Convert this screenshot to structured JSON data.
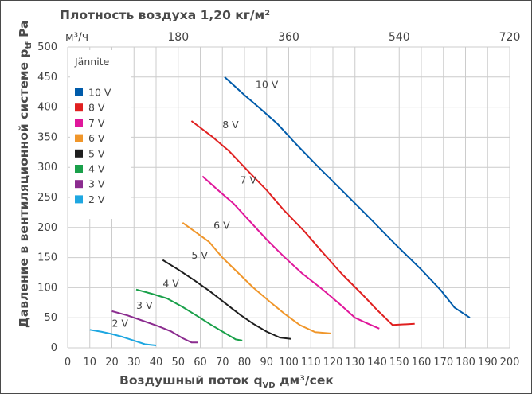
{
  "chart_data": {
    "type": "line",
    "title": "Плотность воздуха 1,20 кг/м²",
    "xlabel": "Воздушный поток q",
    "xlabel_sub": "VD",
    "xlabel_unit": " дм³/сек",
    "ylabel": "Давление в вентиляционной системе p",
    "ylabel_sub": "tf",
    "ylabel_unit": " Pa",
    "top_axis_unit": "м³/ч",
    "top_axis_ticks": [
      "180",
      "360",
      "540",
      "720"
    ],
    "top_axis_tick_values": [
      50,
      100,
      150,
      200
    ],
    "xlim": [
      0,
      200
    ],
    "ylim": [
      0,
      500
    ],
    "x_ticks": [
      0,
      10,
      20,
      30,
      40,
      50,
      60,
      70,
      80,
      90,
      100,
      110,
      120,
      130,
      140,
      150,
      160,
      170,
      180,
      190,
      200
    ],
    "y_ticks": [
      0,
      50,
      100,
      150,
      200,
      250,
      300,
      350,
      400,
      450,
      500
    ],
    "grid": true,
    "legend_title": "Jännite",
    "legend_position": "top-left",
    "series": [
      {
        "name": "10 V",
        "color": "#005BAA",
        "x": [
          71,
          80,
          87,
          95,
          103,
          113,
          124,
          136,
          148,
          160,
          169,
          175,
          182
        ],
        "y": [
          450,
          420,
          398,
          372,
          340,
          302,
          262,
          218,
          173,
          130,
          95,
          67,
          50
        ]
      },
      {
        "name": "8 V",
        "color": "#E02020",
        "x": [
          56,
          65,
          73,
          81,
          90,
          98,
          107,
          115,
          124,
          133,
          140,
          147,
          157
        ],
        "y": [
          377,
          352,
          327,
          296,
          262,
          228,
          194,
          160,
          123,
          90,
          63,
          38,
          40
        ]
      },
      {
        "name": "7 V",
        "color": "#E0179B",
        "x": [
          61,
          68,
          75,
          82,
          90,
          98,
          106,
          115,
          123,
          130,
          136,
          141
        ],
        "y": [
          285,
          262,
          240,
          212,
          180,
          151,
          124,
          98,
          73,
          50,
          40,
          32
        ]
      },
      {
        "name": "6 V",
        "color": "#F0962A",
        "x": [
          52,
          58,
          64,
          70,
          77,
          84,
          91,
          98,
          105,
          112,
          119
        ],
        "y": [
          208,
          192,
          176,
          150,
          125,
          100,
          78,
          57,
          38,
          26,
          24
        ]
      },
      {
        "name": "5 V",
        "color": "#1E1E1E",
        "x": [
          43,
          50,
          57,
          64,
          71,
          78,
          84,
          90,
          96,
          101
        ],
        "y": [
          146,
          130,
          113,
          95,
          75,
          55,
          40,
          27,
          17,
          15
        ]
      },
      {
        "name": "4 V",
        "color": "#1AA04A",
        "x": [
          31,
          38,
          45,
          52,
          59,
          65,
          71,
          76,
          79
        ],
        "y": [
          97,
          90,
          82,
          68,
          52,
          38,
          25,
          14,
          12
        ]
      },
      {
        "name": "3 V",
        "color": "#8B2C8F",
        "x": [
          20,
          27,
          34,
          41,
          47,
          52,
          56,
          59
        ],
        "y": [
          61,
          54,
          45,
          36,
          27,
          16,
          9,
          9
        ]
      },
      {
        "name": "2 V",
        "color": "#1EA7E1",
        "x": [
          10,
          15,
          20,
          25,
          30,
          35,
          40
        ],
        "y": [
          30,
          27,
          23,
          18,
          12,
          6,
          4
        ]
      }
    ],
    "series_labels": [
      {
        "name": "10 V",
        "x": 85,
        "y": 432
      },
      {
        "name": "8 V",
        "x": 70,
        "y": 365
      },
      {
        "name": "7 V",
        "x": 78,
        "y": 273
      },
      {
        "name": "6 V",
        "x": 66,
        "y": 198
      },
      {
        "name": "5 V",
        "x": 56,
        "y": 148
      },
      {
        "name": "4 V",
        "x": 43,
        "y": 101
      },
      {
        "name": "3 V",
        "x": 31,
        "y": 65
      },
      {
        "name": "2 V",
        "x": 20,
        "y": 35
      }
    ]
  }
}
